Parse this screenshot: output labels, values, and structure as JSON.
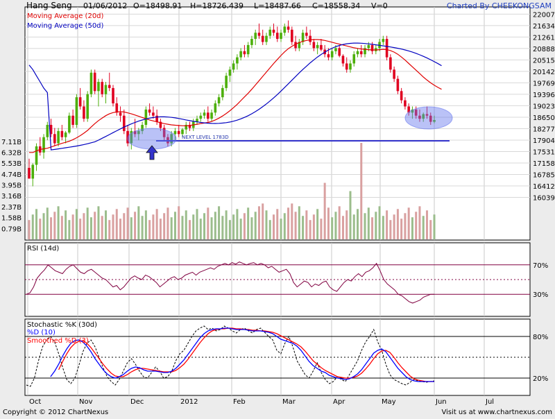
{
  "header": {
    "title": "Hang Seng",
    "date": "01/06/2012",
    "open": "O=18498.91",
    "high": "H=18726.439",
    "low": "L=18487.66",
    "close": "C=18558.34",
    "volume": "V=0",
    "charted_by": "Charted By CHEEKONGSAM"
  },
  "footer": {
    "copyright": "Copyright © 2012 ChartNexus",
    "url": "Visit us at www.chartnexus.com"
  },
  "colors": {
    "up": "#4caf0a",
    "down": "#e00020",
    "ma20": "#e00000",
    "ma50": "#0000c0",
    "rsi": "#800040",
    "stoch_k": "#000000",
    "stoch_d": "#0000ff",
    "stoch_smooth": "#ff0000",
    "annotation": "#3333cc",
    "volume_up": "#9bbd8c",
    "volume_down": "#d9a0a0"
  },
  "chart_data": [
    {
      "type": "candlestick",
      "panel": "price",
      "legend": [
        "Moving Average (20d)",
        "Moving Average (50d)"
      ],
      "y_ticks": [
        "22007",
        "21634",
        "21261",
        "20888",
        "20515",
        "20142",
        "19769",
        "19396",
        "19023",
        "18650",
        "18277",
        "17904",
        "17531",
        "17158",
        "16785",
        "16412",
        "16039"
      ],
      "ylim": [
        15870,
        22060
      ],
      "x_labels": [
        "Oct",
        "Nov",
        "Dec",
        "2012",
        "Feb",
        "Mar",
        "Apr",
        "May",
        "Jun",
        "Jul"
      ],
      "annotation": {
        "text": "NEXT LEVEL 1783D",
        "level": 17880
      },
      "candles": [
        [
          17000,
          17300,
          16700,
          16650
        ],
        [
          16650,
          17150,
          16400,
          17100
        ],
        [
          17100,
          17800,
          16900,
          17700
        ],
        [
          17700,
          18000,
          17400,
          17500
        ],
        [
          17500,
          18100,
          17300,
          18000
        ],
        [
          18000,
          18500,
          17900,
          18400
        ],
        [
          18400,
          18600,
          18000,
          18100
        ],
        [
          18100,
          18300,
          17700,
          17800
        ],
        [
          17800,
          18300,
          17700,
          18200
        ],
        [
          18200,
          18400,
          17900,
          18000
        ],
        [
          18000,
          18200,
          17800,
          18150
        ],
        [
          18150,
          18800,
          18100,
          18700
        ],
        [
          18700,
          18900,
          18300,
          18400
        ],
        [
          18400,
          19400,
          18300,
          19300
        ],
        [
          19300,
          19600,
          18900,
          19000
        ],
        [
          19000,
          19200,
          18500,
          18600
        ],
        [
          18600,
          19500,
          18500,
          19400
        ],
        [
          19400,
          20200,
          19300,
          20100
        ],
        [
          20100,
          20200,
          19400,
          19500
        ],
        [
          19500,
          19900,
          19000,
          19800
        ],
        [
          19800,
          19900,
          19300,
          19400
        ],
        [
          19400,
          19800,
          19100,
          19700
        ],
        [
          19700,
          20100,
          19500,
          19600
        ],
        [
          19600,
          19700,
          19000,
          19100
        ],
        [
          19100,
          19300,
          18700,
          18800
        ],
        [
          18800,
          19000,
          18500,
          18700
        ],
        [
          18700,
          18900,
          18100,
          18200
        ],
        [
          18200,
          18400,
          17700,
          17800
        ],
        [
          17800,
          18300,
          17600,
          18200
        ],
        [
          18200,
          18600,
          18000,
          18100
        ],
        [
          18100,
          18300,
          17900,
          18200
        ],
        [
          18200,
          18500,
          18100,
          18400
        ],
        [
          18400,
          19000,
          18300,
          18900
        ],
        [
          18900,
          19100,
          18700,
          18800
        ],
        [
          18800,
          19000,
          18600,
          18700
        ],
        [
          18700,
          18900,
          18400,
          18500
        ],
        [
          18500,
          18600,
          18200,
          18300
        ],
        [
          18300,
          18400,
          17900,
          18000
        ],
        [
          18000,
          18100,
          17700,
          17800
        ],
        [
          17800,
          18200,
          17700,
          18100
        ],
        [
          18100,
          18300,
          17900,
          18200
        ],
        [
          18200,
          18400,
          18000,
          18100
        ],
        [
          18100,
          18300,
          18000,
          18250
        ],
        [
          18250,
          18500,
          18100,
          18400
        ],
        [
          18400,
          18500,
          18200,
          18300
        ],
        [
          18300,
          18600,
          18200,
          18500
        ],
        [
          18500,
          18700,
          18400,
          18600
        ],
        [
          18600,
          18800,
          18500,
          18700
        ],
        [
          18700,
          18900,
          18600,
          18800
        ],
        [
          18800,
          19000,
          18500,
          18600
        ],
        [
          18600,
          18900,
          18500,
          18800
        ],
        [
          18800,
          19200,
          18700,
          19100
        ],
        [
          19100,
          19400,
          19000,
          19300
        ],
        [
          19300,
          19700,
          19200,
          19600
        ],
        [
          19600,
          20100,
          19500,
          20000
        ],
        [
          20000,
          20300,
          19800,
          20200
        ],
        [
          20200,
          20500,
          20100,
          20400
        ],
        [
          20400,
          20700,
          20200,
          20600
        ],
        [
          20600,
          20900,
          20500,
          20800
        ],
        [
          20800,
          21000,
          20600,
          20700
        ],
        [
          20700,
          21100,
          20600,
          21000
        ],
        [
          21000,
          21300,
          20900,
          21200
        ],
        [
          21200,
          21500,
          21000,
          21400
        ],
        [
          21400,
          21700,
          21200,
          21300
        ],
        [
          21300,
          21500,
          21000,
          21100
        ],
        [
          21100,
          21400,
          21000,
          21300
        ],
        [
          21300,
          21600,
          21200,
          21500
        ],
        [
          21500,
          21700,
          21300,
          21400
        ],
        [
          21400,
          21600,
          21100,
          21200
        ],
        [
          21200,
          21500,
          21100,
          21400
        ],
        [
          21400,
          21700,
          21300,
          21600
        ],
        [
          21600,
          21800,
          21400,
          21500
        ],
        [
          21500,
          21600,
          21000,
          21100
        ],
        [
          21100,
          21300,
          20800,
          20900
        ],
        [
          20900,
          21200,
          20800,
          21100
        ],
        [
          21100,
          21500,
          21000,
          21400
        ],
        [
          21400,
          21600,
          21200,
          21300
        ],
        [
          21300,
          21500,
          21000,
          21100
        ],
        [
          21100,
          21200,
          20800,
          20900
        ],
        [
          20900,
          21100,
          20700,
          21000
        ],
        [
          21000,
          21200,
          20800,
          20850
        ],
        [
          20850,
          21000,
          20600,
          20700
        ],
        [
          20700,
          20900,
          20500,
          20600
        ],
        [
          20600,
          20900,
          20500,
          20800
        ],
        [
          20800,
          21000,
          20700,
          20900
        ],
        [
          20900,
          21000,
          20600,
          20650
        ],
        [
          20650,
          20700,
          20300,
          20400
        ],
        [
          20400,
          20600,
          20100,
          20200
        ],
        [
          20200,
          20500,
          20100,
          20400
        ],
        [
          20400,
          20800,
          20300,
          20700
        ],
        [
          20700,
          20900,
          20600,
          20800
        ],
        [
          20800,
          21000,
          20600,
          20700
        ],
        [
          20700,
          21000,
          20600,
          20900
        ],
        [
          20900,
          21100,
          20800,
          21000
        ],
        [
          21000,
          21100,
          20700,
          20800
        ],
        [
          20800,
          21000,
          20700,
          20900
        ],
        [
          20900,
          21200,
          20800,
          21100
        ],
        [
          21100,
          21300,
          21000,
          21200
        ],
        [
          21200,
          21300,
          20500,
          20600
        ],
        [
          20600,
          20700,
          20100,
          20200
        ],
        [
          20200,
          20300,
          19800,
          19900
        ],
        [
          19900,
          20000,
          19400,
          19500
        ],
        [
          19500,
          19600,
          19100,
          19200
        ],
        [
          19200,
          19300,
          18900,
          19000
        ],
        [
          19000,
          19100,
          18700,
          18800
        ],
        [
          18800,
          19000,
          18600,
          18900
        ],
        [
          18900,
          19000,
          18600,
          18700
        ],
        [
          18700,
          18900,
          18500,
          18600
        ],
        [
          18600,
          18800,
          18500,
          18750
        ],
        [
          18750,
          19000,
          18600,
          18700
        ],
        [
          18700,
          18800,
          18400,
          18500
        ],
        [
          18500,
          18700,
          18450,
          18558
        ]
      ],
      "ma20": [
        17500,
        17500,
        17550,
        17600,
        17620,
        17640,
        17680,
        17720,
        17760,
        17800,
        17830,
        17870,
        17920,
        17980,
        18050,
        18130,
        18220,
        18330,
        18440,
        18540,
        18620,
        18700,
        18760,
        18800,
        18820,
        18830,
        18820,
        18790,
        18760,
        18720,
        18680,
        18640,
        18600,
        18560,
        18530,
        18500,
        18470,
        18440,
        18420,
        18400,
        18390,
        18380,
        18370,
        18370,
        18380,
        18400,
        18420,
        18440,
        18460,
        18480,
        18510,
        18560,
        18620,
        18690,
        18770,
        18860,
        18960,
        19070,
        19190,
        19310,
        19430,
        19560,
        19700,
        19840,
        19980,
        20120,
        20260,
        20400,
        20530,
        20660,
        20780,
        20880,
        20960,
        21030,
        21080,
        21120,
        21150,
        21170,
        21180,
        21180,
        21170,
        21150,
        21120,
        21090,
        21060,
        21030,
        21000,
        20970,
        20940,
        20910,
        20890,
        20870,
        20860,
        20850,
        20840,
        20840,
        20850,
        20860,
        20850,
        20820,
        20770,
        20700,
        20610,
        20510,
        20400,
        20290,
        20180,
        20070,
        19960,
        19860,
        19770,
        19690,
        19620,
        19560
      ]
    },
    {
      "type": "bar",
      "panel": "volume",
      "y_ticks": [
        "7.11B",
        "6.32B",
        "5.53B",
        "4.74B",
        "3.95B",
        "3.16B",
        "2.37B",
        "1.58B",
        "0.79B"
      ],
      "ylim": [
        0,
        7.3
      ]
    },
    {
      "type": "line",
      "panel": "rsi",
      "legend": [
        "RSI (14d)"
      ],
      "y_ticks": [
        "70%",
        "30%"
      ],
      "ylim": [
        0,
        100
      ],
      "levels": [
        70,
        50,
        30
      ],
      "values": [
        30,
        32,
        40,
        52,
        58,
        63,
        70,
        66,
        62,
        60,
        58,
        64,
        68,
        70,
        65,
        60,
        58,
        62,
        64,
        60,
        56,
        52,
        50,
        45,
        40,
        42,
        36,
        40,
        46,
        52,
        55,
        52,
        50,
        56,
        54,
        50,
        46,
        40,
        44,
        48,
        52,
        54,
        50,
        52,
        56,
        58,
        60,
        56,
        60,
        62,
        64,
        66,
        64,
        68,
        70,
        72,
        70,
        73,
        71,
        74,
        72,
        70,
        72,
        73,
        70,
        72,
        70,
        66,
        68,
        64,
        60,
        62,
        64,
        58,
        46,
        40,
        44,
        48,
        46,
        40,
        44,
        42,
        46,
        48,
        40,
        36,
        34,
        40,
        46,
        50,
        48,
        54,
        58,
        54,
        60,
        62,
        66,
        72,
        62,
        50,
        44,
        40,
        36,
        30,
        28,
        24,
        20,
        18,
        20,
        22,
        26,
        28,
        30,
        30
      ]
    },
    {
      "type": "line",
      "panel": "stochastic",
      "legend": [
        "Stochastic %K (30d)",
        "%D (10)",
        "Smoothed %D (3)"
      ],
      "y_ticks": [
        "80%",
        "20%"
      ],
      "ylim": [
        0,
        100
      ],
      "levels": [
        80,
        50,
        20
      ],
      "k": [
        10,
        8,
        20,
        45,
        65,
        75,
        80,
        72,
        55,
        35,
        18,
        12,
        20,
        38,
        58,
        70,
        75,
        65,
        50,
        35,
        22,
        15,
        10,
        18,
        30,
        42,
        48,
        40,
        30,
        22,
        20,
        28,
        36,
        30,
        20,
        22,
        30,
        45,
        55,
        60,
        70,
        80,
        88,
        92,
        95,
        90,
        92,
        88,
        90,
        95,
        92,
        88,
        85,
        90,
        92,
        88,
        85,
        90,
        92,
        86,
        80,
        75,
        60,
        55,
        70,
        80,
        65,
        45,
        35,
        25,
        20,
        30,
        42,
        28,
        18,
        12,
        15,
        22,
        18,
        15,
        25,
        35,
        45,
        60,
        72,
        80,
        90,
        72,
        60,
        40,
        25,
        18,
        15,
        12,
        10,
        14,
        18,
        16,
        15,
        14,
        15,
        16
      ],
      "d": [
        null,
        null,
        null,
        null,
        null,
        null,
        22,
        30,
        40,
        52,
        62,
        70,
        74,
        75,
        72,
        66,
        58,
        48,
        40,
        32,
        26,
        22,
        20,
        22,
        25,
        30,
        34,
        36,
        35,
        32,
        30,
        30,
        30,
        29,
        28,
        28,
        30,
        34,
        40,
        46,
        54,
        62,
        70,
        78,
        84,
        88,
        90,
        91,
        91,
        92,
        92,
        91,
        90,
        90,
        90,
        89,
        88,
        88,
        88,
        87,
        86,
        84,
        80,
        76,
        74,
        72,
        70,
        66,
        60,
        52,
        44,
        38,
        34,
        30,
        28,
        24,
        22,
        20,
        19,
        18,
        19,
        22,
        26,
        32,
        40,
        48,
        56,
        60,
        62,
        58,
        50,
        42,
        34,
        28,
        22,
        18,
        16,
        15,
        15,
        15,
        15,
        15
      ],
      "d_smooth": [
        null,
        null,
        null,
        null,
        null,
        null,
        null,
        null,
        32,
        44,
        55,
        64,
        70,
        73,
        74,
        70,
        64,
        56,
        48,
        40,
        33,
        27,
        23,
        22,
        22,
        25,
        29,
        32,
        34,
        34,
        33,
        32,
        31,
        30,
        29,
        29,
        29,
        31,
        35,
        40,
        47,
        55,
        63,
        71,
        78,
        84,
        88,
        90,
        91,
        91,
        92,
        92,
        91,
        91,
        90,
        90,
        89,
        89,
        88,
        88,
        87,
        86,
        84,
        81,
        78,
        75,
        72,
        69,
        65,
        59,
        52,
        45,
        40,
        35,
        31,
        28,
        25,
        22,
        21,
        20,
        20,
        21,
        23,
        27,
        33,
        40,
        48,
        55,
        59,
        60,
        57,
        50,
        42,
        35,
        29,
        23,
        19,
        17,
        16,
        15,
        15,
        15
      ]
    }
  ]
}
